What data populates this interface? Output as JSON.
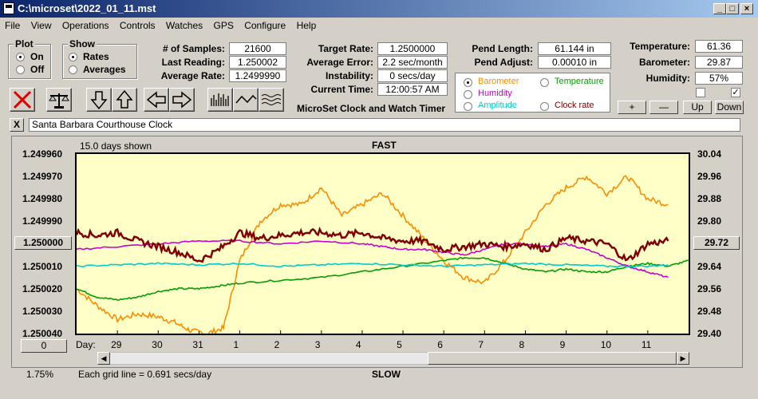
{
  "window": {
    "title": "C:\\microset\\2022_01_11.mst"
  },
  "menu": [
    "File",
    "View",
    "Operations",
    "Controls",
    "Watches",
    "GPS",
    "Configure",
    "Help"
  ],
  "plot_group": {
    "title": "Plot",
    "on": "On",
    "off": "Off",
    "selected": "On"
  },
  "show_group": {
    "title": "Show",
    "rates": "Rates",
    "averages": "Averages",
    "selected": "Rates"
  },
  "stats": {
    "samples_label": "# of Samples:",
    "samples": "21600",
    "last_label": "Last Reading:",
    "last": "1.250002",
    "avg_label": "Average Rate:",
    "avg": "1.2499990",
    "target_label": "Target Rate:",
    "target": "1.2500000",
    "avgerr_label": "Average Error:",
    "avgerr": "2.2 sec/month",
    "instab_label": "Instability:",
    "instab": "0 secs/day",
    "time_label": "Current Time:",
    "time": "12:00:57 AM",
    "pendlen_label": "Pend Length:",
    "pendlen": "61.144 in",
    "pendadj_label": "Pend Adjust:",
    "pendadj": "0.00010 in",
    "temp_label": "Temperature:",
    "temp": "61.36",
    "baro_label": "Barometer:",
    "baro": "29.87",
    "hum_label": "Humidity:",
    "hum": "57%"
  },
  "app_caption": "MicroSet Clock and Watch Timer",
  "sensors": {
    "barometer": "Barometer",
    "temperature": "Temperature",
    "humidity": "Humidity",
    "amplitude": "Amplitude",
    "clockrate": "Clock rate",
    "selected": "Barometer",
    "colors": {
      "barometer": "#ff8c00",
      "temperature": "#00a000",
      "humidity": "#cc00cc",
      "amplitude": "#00cccc",
      "clockrate": "#800000"
    }
  },
  "adjust_buttons": {
    "plus": "+",
    "minus": "—",
    "up": "Up",
    "down": "Down"
  },
  "clock_name": "Santa Barbara Courthouse Clock",
  "close_x": "X",
  "chart_data": {
    "type": "line",
    "days_shown": "15.0 days shown",
    "top_label": "FAST",
    "bottom_label": "SLOW",
    "grid_note": "Each grid line = 0.691 secs/day",
    "left_ticks": [
      "1.249960",
      "1.249970",
      "1.249980",
      "1.249990",
      "1.250000",
      "1.250010",
      "1.250020",
      "1.250030",
      "1.250040"
    ],
    "right_ticks": [
      "30.04",
      "29.96",
      "29.88",
      "29.80",
      "29.72",
      "29.64",
      "29.56",
      "29.48",
      "29.40"
    ],
    "left_marker": "1.250000",
    "right_marker": "29.72",
    "bottom_left_value": "0",
    "percent": "1.75%",
    "x_label": "Day:",
    "x_ticks": [
      "29",
      "30",
      "31",
      "1",
      "2",
      "3",
      "4",
      "5",
      "6",
      "7",
      "8",
      "9",
      "10",
      "11"
    ],
    "xlim": [
      0,
      15
    ],
    "rate_ylim": [
      1.24996,
      1.25004
    ],
    "baro_ylim": [
      29.4,
      30.04
    ],
    "series": [
      {
        "name": "Barometer",
        "color": "#ff8c00",
        "x": [
          0,
          0.5,
          1,
          1.5,
          2,
          2.4,
          2.8,
          3.2,
          3.6,
          4,
          4.5,
          5,
          5.5,
          6,
          6.5,
          7,
          7.5,
          8,
          8.5,
          9,
          9.5,
          10,
          10.5,
          11,
          11.5,
          12,
          12.5,
          13,
          13.5,
          14,
          14.5
        ],
        "y": [
          29.56,
          29.5,
          29.45,
          29.47,
          29.46,
          29.44,
          29.41,
          29.4,
          29.42,
          29.66,
          29.8,
          29.86,
          29.86,
          29.92,
          29.82,
          29.86,
          29.9,
          29.82,
          29.74,
          29.66,
          29.6,
          29.58,
          29.66,
          29.76,
          29.86,
          29.92,
          29.96,
          29.9,
          29.96,
          29.88,
          29.86
        ]
      },
      {
        "name": "Temperature",
        "color": "#00a000",
        "x": [
          0,
          0.5,
          1,
          1.5,
          2,
          2.5,
          3,
          3.5,
          4,
          5,
          6,
          7,
          8,
          9,
          9.5,
          10,
          10.5,
          11,
          11.5,
          12,
          12.5,
          13,
          13.5,
          14,
          14.5,
          15
        ],
        "y": [
          29.56,
          29.53,
          29.52,
          29.53,
          29.55,
          29.56,
          29.56,
          29.57,
          29.58,
          29.59,
          29.6,
          29.62,
          29.64,
          29.66,
          29.67,
          29.67,
          29.65,
          29.63,
          29.62,
          29.63,
          29.62,
          29.62,
          29.64,
          29.65,
          29.64,
          29.66
        ]
      },
      {
        "name": "Humidity",
        "color": "#cc00cc",
        "x": [
          0,
          1,
          2,
          3,
          4,
          5,
          6,
          7,
          7.5,
          8,
          8.5,
          9,
          9.5,
          10,
          10.5,
          11,
          11.5,
          12,
          12.5,
          13,
          13.5,
          14,
          14.5
        ],
        "y": [
          29.7,
          29.71,
          29.72,
          29.73,
          29.73,
          29.72,
          29.73,
          29.72,
          29.71,
          29.7,
          29.7,
          29.69,
          29.68,
          29.7,
          29.72,
          29.72,
          29.71,
          29.72,
          29.7,
          29.67,
          29.64,
          29.62,
          29.6
        ]
      },
      {
        "name": "Amplitude",
        "color": "#00cccc",
        "x": [
          0,
          1,
          2,
          3,
          4,
          5,
          6,
          7,
          8,
          9,
          10,
          11,
          12,
          13,
          14,
          14.5
        ],
        "y": [
          29.64,
          29.645,
          29.65,
          29.645,
          29.65,
          29.64,
          29.645,
          29.65,
          29.645,
          29.64,
          29.645,
          29.65,
          29.645,
          29.64,
          29.64,
          29.645
        ]
      },
      {
        "name": "Clock rate",
        "color": "#800000",
        "x": [
          0,
          0.5,
          1,
          1.5,
          2,
          2.5,
          3,
          3.5,
          4,
          4.5,
          5,
          5.5,
          6,
          6.5,
          7,
          7.5,
          8,
          8.5,
          9,
          9.5,
          10,
          10.5,
          11,
          11.5,
          12,
          12.5,
          13,
          13.5,
          14,
          14.5
        ],
        "y": [
          29.76,
          29.75,
          29.76,
          29.73,
          29.71,
          29.69,
          29.66,
          29.7,
          29.76,
          29.74,
          29.75,
          29.76,
          29.76,
          29.75,
          29.76,
          29.74,
          29.73,
          29.73,
          29.7,
          29.71,
          29.72,
          29.71,
          29.72,
          29.7,
          29.74,
          29.73,
          29.72,
          29.66,
          29.72,
          29.73
        ]
      }
    ]
  }
}
